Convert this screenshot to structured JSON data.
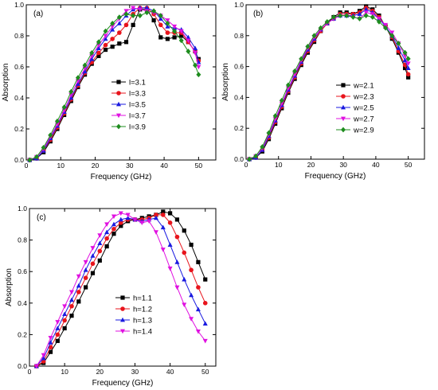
{
  "chart_data": [
    {
      "type": "line",
      "panel_label": "(a)",
      "xlabel": "Frequency (GHz)",
      "ylabel": "Absorption",
      "xlim": [
        0,
        55
      ],
      "ylim": [
        0,
        1.0
      ],
      "xticks": [
        0,
        10,
        20,
        30,
        40,
        50
      ],
      "yticks": [
        0.0,
        0.2,
        0.4,
        0.6,
        0.8,
        1.0
      ],
      "legend_position": "center-right",
      "x": [
        1,
        3,
        5,
        7,
        9,
        11,
        13,
        15,
        17,
        19,
        21,
        23,
        25,
        27,
        29,
        31,
        33,
        35,
        37,
        39,
        41,
        43,
        45,
        47,
        49,
        50
      ],
      "series": [
        {
          "name": "l=3.1",
          "color": "#000000",
          "marker": "square",
          "values": [
            0.0,
            0.01,
            0.05,
            0.12,
            0.2,
            0.29,
            0.38,
            0.47,
            0.55,
            0.62,
            0.67,
            0.71,
            0.73,
            0.75,
            0.76,
            0.87,
            0.97,
            0.97,
            0.9,
            0.79,
            0.78,
            0.79,
            0.8,
            0.76,
            0.7,
            0.65
          ]
        },
        {
          "name": "l=3.3",
          "color": "#e8141c",
          "marker": "circle",
          "values": [
            0.0,
            0.01,
            0.06,
            0.13,
            0.21,
            0.3,
            0.39,
            0.48,
            0.56,
            0.63,
            0.69,
            0.74,
            0.78,
            0.82,
            0.87,
            0.94,
            0.98,
            0.98,
            0.94,
            0.87,
            0.82,
            0.82,
            0.82,
            0.76,
            0.7,
            0.64
          ]
        },
        {
          "name": "l=3.5",
          "color": "#1a1ae0",
          "marker": "triangle-up",
          "values": [
            0.0,
            0.01,
            0.06,
            0.14,
            0.22,
            0.31,
            0.4,
            0.49,
            0.57,
            0.65,
            0.72,
            0.78,
            0.84,
            0.88,
            0.93,
            0.97,
            0.98,
            0.98,
            0.96,
            0.91,
            0.86,
            0.85,
            0.84,
            0.79,
            0.72,
            0.63
          ]
        },
        {
          "name": "l=3.7",
          "color": "#e010e0",
          "marker": "triangle-down",
          "values": [
            0.0,
            0.02,
            0.07,
            0.15,
            0.23,
            0.32,
            0.42,
            0.51,
            0.59,
            0.67,
            0.74,
            0.8,
            0.86,
            0.91,
            0.96,
            0.98,
            0.97,
            0.96,
            0.95,
            0.93,
            0.9,
            0.86,
            0.83,
            0.77,
            0.69,
            0.6
          ]
        },
        {
          "name": "l=3.9",
          "color": "#1e8c1e",
          "marker": "diamond",
          "values": [
            0.0,
            0.02,
            0.08,
            0.16,
            0.25,
            0.34,
            0.44,
            0.53,
            0.61,
            0.69,
            0.76,
            0.83,
            0.88,
            0.92,
            0.94,
            0.93,
            0.93,
            0.95,
            0.96,
            0.93,
            0.88,
            0.83,
            0.77,
            0.7,
            0.61,
            0.55
          ]
        }
      ]
    },
    {
      "type": "line",
      "panel_label": "(b)",
      "xlabel": "Frequency (GHz)",
      "ylabel": "Absorption",
      "xlim": [
        0,
        55
      ],
      "ylim": [
        0,
        1.0
      ],
      "xticks": [
        0,
        10,
        20,
        30,
        40,
        50
      ],
      "yticks": [
        0.0,
        0.2,
        0.4,
        0.6,
        0.8,
        1.0
      ],
      "legend_position": "center-right",
      "x": [
        1,
        3,
        5,
        7,
        9,
        11,
        13,
        15,
        17,
        19,
        21,
        23,
        25,
        27,
        29,
        31,
        33,
        35,
        37,
        39,
        41,
        43,
        45,
        47,
        49,
        50
      ],
      "series": [
        {
          "name": "w=2.1",
          "color": "#000000",
          "marker": "square",
          "values": [
            0.0,
            0.01,
            0.05,
            0.13,
            0.23,
            0.33,
            0.43,
            0.52,
            0.61,
            0.69,
            0.76,
            0.83,
            0.88,
            0.92,
            0.95,
            0.95,
            0.94,
            0.96,
            0.99,
            0.97,
            0.93,
            0.86,
            0.78,
            0.69,
            0.59,
            0.53
          ]
        },
        {
          "name": "w=2.3",
          "color": "#e8141c",
          "marker": "circle",
          "values": [
            0.0,
            0.01,
            0.06,
            0.14,
            0.24,
            0.34,
            0.44,
            0.53,
            0.62,
            0.7,
            0.77,
            0.83,
            0.88,
            0.91,
            0.94,
            0.94,
            0.94,
            0.95,
            0.98,
            0.96,
            0.92,
            0.86,
            0.79,
            0.7,
            0.61,
            0.55
          ]
        },
        {
          "name": "w=2.5",
          "color": "#1a1ae0",
          "marker": "triangle-up",
          "values": [
            0.0,
            0.01,
            0.06,
            0.15,
            0.25,
            0.35,
            0.45,
            0.54,
            0.63,
            0.71,
            0.78,
            0.84,
            0.88,
            0.91,
            0.93,
            0.93,
            0.93,
            0.94,
            0.97,
            0.95,
            0.91,
            0.86,
            0.8,
            0.72,
            0.64,
            0.59
          ]
        },
        {
          "name": "w=2.7",
          "color": "#e010e0",
          "marker": "triangle-down",
          "values": [
            0.0,
            0.02,
            0.07,
            0.16,
            0.26,
            0.36,
            0.46,
            0.55,
            0.64,
            0.72,
            0.79,
            0.84,
            0.88,
            0.91,
            0.93,
            0.93,
            0.92,
            0.91,
            0.95,
            0.94,
            0.91,
            0.87,
            0.82,
            0.75,
            0.67,
            0.62
          ]
        },
        {
          "name": "w=2.9",
          "color": "#1e8c1e",
          "marker": "diamond",
          "values": [
            0.0,
            0.02,
            0.08,
            0.17,
            0.28,
            0.38,
            0.48,
            0.57,
            0.65,
            0.73,
            0.8,
            0.85,
            0.89,
            0.92,
            0.93,
            0.93,
            0.92,
            0.91,
            0.93,
            0.92,
            0.89,
            0.85,
            0.8,
            0.75,
            0.69,
            0.65
          ]
        }
      ]
    },
    {
      "type": "line",
      "panel_label": "(c)",
      "xlabel": "Frequency (GHz)",
      "ylabel": "Absorption",
      "xlim": [
        0,
        53
      ],
      "ylim": [
        0,
        1.0
      ],
      "xticks": [
        0,
        10,
        20,
        30,
        40,
        50
      ],
      "yticks": [
        0.0,
        0.2,
        0.4,
        0.6,
        0.8,
        1.0
      ],
      "legend_position": "center-right",
      "x": [
        2,
        4,
        6,
        8,
        10,
        12,
        14,
        16,
        18,
        20,
        22,
        24,
        26,
        28,
        30,
        32,
        34,
        36,
        38,
        40,
        42,
        44,
        46,
        48,
        50
      ],
      "series": [
        {
          "name": "h=1.1",
          "color": "#000000",
          "marker": "square",
          "values": [
            0.0,
            0.02,
            0.09,
            0.16,
            0.24,
            0.32,
            0.41,
            0.5,
            0.59,
            0.67,
            0.76,
            0.84,
            0.89,
            0.92,
            0.93,
            0.94,
            0.95,
            0.96,
            0.98,
            0.97,
            0.93,
            0.86,
            0.77,
            0.66,
            0.55
          ]
        },
        {
          "name": "h=1.2",
          "color": "#e8141c",
          "marker": "circle",
          "values": [
            0.0,
            0.03,
            0.12,
            0.2,
            0.29,
            0.38,
            0.47,
            0.56,
            0.65,
            0.73,
            0.81,
            0.87,
            0.91,
            0.93,
            0.93,
            0.93,
            0.94,
            0.96,
            0.96,
            0.91,
            0.82,
            0.72,
            0.61,
            0.5,
            0.4
          ]
        },
        {
          "name": "h=1.3",
          "color": "#1a1ae0",
          "marker": "triangle-up",
          "values": [
            0.0,
            0.05,
            0.15,
            0.24,
            0.33,
            0.42,
            0.51,
            0.61,
            0.7,
            0.78,
            0.85,
            0.9,
            0.93,
            0.94,
            0.93,
            0.92,
            0.93,
            0.94,
            0.88,
            0.77,
            0.66,
            0.55,
            0.45,
            0.36,
            0.27
          ]
        },
        {
          "name": "h=1.4",
          "color": "#e010e0",
          "marker": "triangle-down",
          "values": [
            0.0,
            0.07,
            0.18,
            0.28,
            0.38,
            0.47,
            0.57,
            0.66,
            0.75,
            0.83,
            0.9,
            0.95,
            0.97,
            0.96,
            0.93,
            0.91,
            0.92,
            0.85,
            0.74,
            0.62,
            0.5,
            0.39,
            0.3,
            0.22,
            0.16
          ]
        }
      ]
    }
  ]
}
